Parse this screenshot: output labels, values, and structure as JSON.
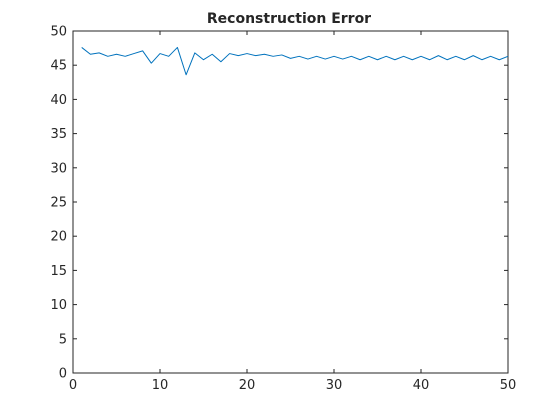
{
  "chart_data": {
    "type": "line",
    "title": "Reconstruction Error",
    "xlabel": "",
    "ylabel": "",
    "xlim": [
      0,
      50
    ],
    "ylim": [
      0,
      50
    ],
    "xticks": [
      0,
      10,
      20,
      30,
      40,
      50
    ],
    "yticks": [
      0,
      5,
      10,
      15,
      20,
      25,
      30,
      35,
      40,
      45,
      50
    ],
    "grid": false,
    "line_color": "#0072BD",
    "series": [
      {
        "x": [
          1,
          2,
          3,
          4,
          5,
          6,
          7,
          8,
          9,
          10,
          11,
          12,
          13,
          14,
          15,
          16,
          17,
          18,
          19,
          20,
          21,
          22,
          23,
          24,
          25,
          26,
          27,
          28,
          29,
          30,
          31,
          32,
          33,
          34,
          35,
          36,
          37,
          38,
          39,
          40,
          41,
          42,
          43,
          44,
          45,
          46,
          47,
          48,
          49,
          50
        ],
        "values": [
          47.6,
          46.6,
          46.8,
          46.3,
          46.6,
          46.3,
          46.7,
          47.1,
          45.3,
          46.7,
          46.3,
          47.6,
          43.6,
          46.8,
          45.8,
          46.6,
          45.5,
          46.7,
          46.4,
          46.7,
          46.4,
          46.6,
          46.3,
          46.5,
          46.0,
          46.3,
          45.9,
          46.3,
          45.9,
          46.3,
          45.9,
          46.3,
          45.8,
          46.3,
          45.8,
          46.3,
          45.8,
          46.3,
          45.8,
          46.3,
          45.8,
          46.4,
          45.8,
          46.3,
          45.8,
          46.4,
          45.8,
          46.3,
          45.8,
          46.3
        ]
      }
    ]
  }
}
